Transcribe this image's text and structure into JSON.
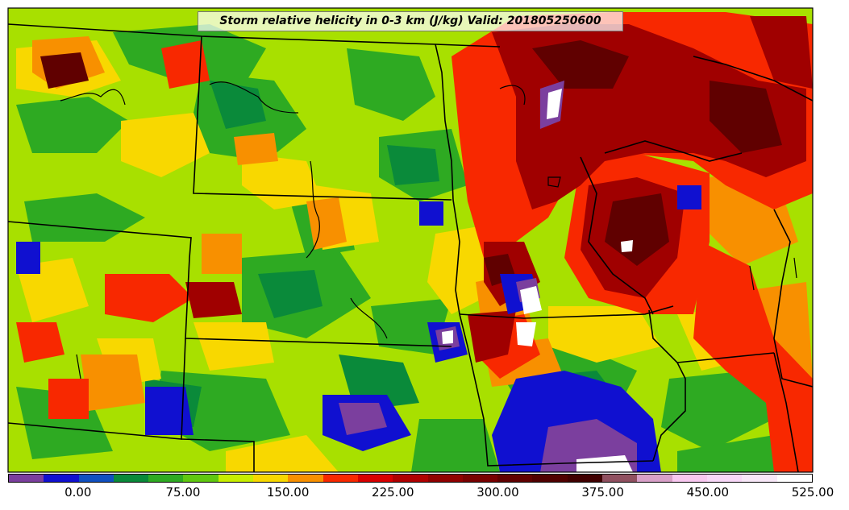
{
  "title": "Storm relative helicity in 0-3 km (J/kg) Valid: 201805250600",
  "colorbar": {
    "colors": [
      "#7b3f9e",
      "#1010d0",
      "#1050c0",
      "#0a8a3a",
      "#2eaa22",
      "#60c810",
      "#c8ee00",
      "#f8d800",
      "#f89000",
      "#f82800",
      "#d80000",
      "#b00000",
      "#900000",
      "#780000",
      "#600000",
      "#500000",
      "#400000",
      "#905060",
      "#d8a0c8",
      "#f8c8f0",
      "#f8d8f8",
      "#f8e8f8",
      "#ffffff"
    ],
    "labels": [
      "0.00",
      "75.00",
      "150.00",
      "225.00",
      "300.00",
      "375.00",
      "450.00",
      "525.00"
    ]
  },
  "map_colors": {
    "background": "#a8e000",
    "green": "#2eaa22",
    "dark_green": "#0a8a3a",
    "yellow": "#f8d800",
    "orange": "#f89000",
    "red": "#f82800",
    "dark_red": "#a00000",
    "darkest_red": "#600000",
    "blue": "#1010d0",
    "purple": "#7b3f9e",
    "white": "#ffffff"
  }
}
